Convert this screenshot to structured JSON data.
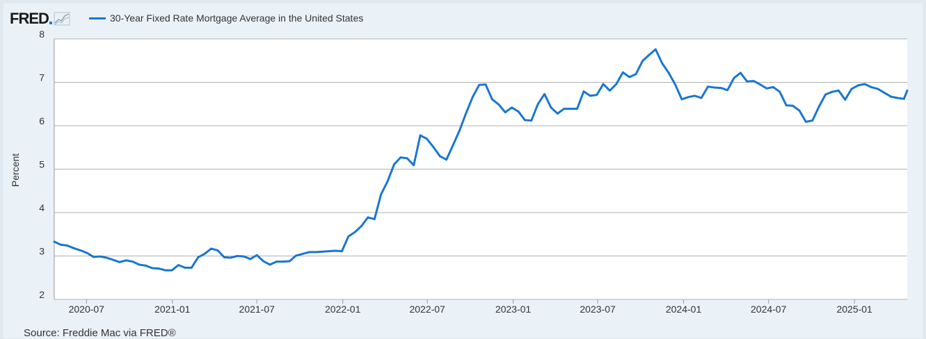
{
  "header": {
    "logo_text": "FRED",
    "legend_label": "30-Year Fixed Rate Mortgage Average in the United States"
  },
  "source": "Source: Freddie Mac via FRED®",
  "colors": {
    "series": "#1976d2",
    "grid": "#b0b0b0",
    "plot_bg": "#ffffff",
    "panel_bg": "#eaf1f7"
  },
  "chart_data": {
    "type": "line",
    "title": "30-Year Fixed Rate Mortgage Average in the United States",
    "xlabel": "",
    "ylabel": "Percent",
    "ylim": [
      2,
      8
    ],
    "xlim": [
      "2020-04-23",
      "2025-04-24"
    ],
    "yticks": [
      2,
      3,
      4,
      5,
      6,
      7,
      8
    ],
    "xticks": [
      "2020-07",
      "2021-01",
      "2021-07",
      "2022-01",
      "2022-07",
      "2023-01",
      "2023-07",
      "2024-01",
      "2024-07",
      "2025-01"
    ],
    "grid": "horizontal",
    "legend": "top-left",
    "series": [
      {
        "name": "30-Year Fixed Rate Mortgage Average in the United States",
        "x": [
          "2020-04-23",
          "2020-05-07",
          "2020-05-21",
          "2020-06-04",
          "2020-06-18",
          "2020-07-02",
          "2020-07-16",
          "2020-07-30",
          "2020-08-13",
          "2020-08-27",
          "2020-09-10",
          "2020-09-24",
          "2020-10-08",
          "2020-10-22",
          "2020-11-05",
          "2020-11-19",
          "2020-12-03",
          "2020-12-17",
          "2020-12-31",
          "2021-01-14",
          "2021-01-28",
          "2021-02-11",
          "2021-02-25",
          "2021-03-11",
          "2021-03-25",
          "2021-04-08",
          "2021-04-22",
          "2021-05-06",
          "2021-05-20",
          "2021-06-03",
          "2021-06-17",
          "2021-07-01",
          "2021-07-15",
          "2021-07-29",
          "2021-08-12",
          "2021-08-26",
          "2021-09-09",
          "2021-09-23",
          "2021-10-07",
          "2021-10-21",
          "2021-11-04",
          "2021-11-18",
          "2021-12-02",
          "2021-12-16",
          "2021-12-30",
          "2022-01-13",
          "2022-01-27",
          "2022-02-10",
          "2022-02-24",
          "2022-03-10",
          "2022-03-24",
          "2022-04-07",
          "2022-04-21",
          "2022-05-05",
          "2022-05-19",
          "2022-06-02",
          "2022-06-16",
          "2022-06-30",
          "2022-07-14",
          "2022-07-28",
          "2022-08-11",
          "2022-08-25",
          "2022-09-08",
          "2022-09-22",
          "2022-10-06",
          "2022-10-20",
          "2022-11-03",
          "2022-11-17",
          "2022-12-01",
          "2022-12-15",
          "2022-12-29",
          "2023-01-12",
          "2023-01-26",
          "2023-02-09",
          "2023-02-23",
          "2023-03-09",
          "2023-03-23",
          "2023-04-06",
          "2023-04-20",
          "2023-05-04",
          "2023-05-18",
          "2023-06-01",
          "2023-06-15",
          "2023-06-29",
          "2023-07-13",
          "2023-07-27",
          "2023-08-10",
          "2023-08-24",
          "2023-09-07",
          "2023-09-21",
          "2023-10-05",
          "2023-10-19",
          "2023-11-02",
          "2023-11-16",
          "2023-11-30",
          "2023-12-14",
          "2023-12-28",
          "2024-01-11",
          "2024-01-25",
          "2024-02-08",
          "2024-02-22",
          "2024-03-07",
          "2024-03-21",
          "2024-04-04",
          "2024-04-18",
          "2024-05-02",
          "2024-05-16",
          "2024-05-30",
          "2024-06-13",
          "2024-06-27",
          "2024-07-11",
          "2024-07-25",
          "2024-08-08",
          "2024-08-22",
          "2024-09-05",
          "2024-09-19",
          "2024-10-03",
          "2024-10-17",
          "2024-10-31",
          "2024-11-14",
          "2024-11-28",
          "2024-12-12",
          "2024-12-26",
          "2025-01-09",
          "2025-01-23",
          "2025-02-06",
          "2025-02-20",
          "2025-03-06",
          "2025-03-20",
          "2025-04-03",
          "2025-04-17",
          "2025-04-24"
        ],
        "values": [
          3.33,
          3.26,
          3.24,
          3.18,
          3.13,
          3.07,
          2.98,
          2.99,
          2.96,
          2.91,
          2.86,
          2.9,
          2.87,
          2.8,
          2.78,
          2.72,
          2.71,
          2.67,
          2.67,
          2.79,
          2.73,
          2.73,
          2.97,
          3.05,
          3.17,
          3.13,
          2.97,
          2.96,
          3.0,
          2.99,
          2.93,
          3.02,
          2.88,
          2.8,
          2.87,
          2.87,
          2.88,
          3.01,
          3.05,
          3.09,
          3.09,
          3.1,
          3.11,
          3.12,
          3.11,
          3.45,
          3.55,
          3.69,
          3.89,
          3.85,
          4.42,
          4.72,
          5.11,
          5.27,
          5.25,
          5.09,
          5.78,
          5.7,
          5.51,
          5.3,
          5.22,
          5.55,
          5.89,
          6.29,
          6.66,
          6.94,
          6.95,
          6.61,
          6.49,
          6.31,
          6.42,
          6.33,
          6.13,
          6.12,
          6.5,
          6.73,
          6.42,
          6.28,
          6.39,
          6.39,
          6.39,
          6.79,
          6.69,
          6.71,
          6.96,
          6.81,
          6.96,
          7.23,
          7.12,
          7.19,
          7.49,
          7.63,
          7.76,
          7.44,
          7.22,
          6.95,
          6.61,
          6.66,
          6.69,
          6.64,
          6.9,
          6.88,
          6.87,
          6.82,
          7.1,
          7.22,
          7.02,
          7.03,
          6.95,
          6.86,
          6.89,
          6.78,
          6.47,
          6.46,
          6.35,
          6.09,
          6.12,
          6.44,
          6.72,
          6.78,
          6.81,
          6.6,
          6.85,
          6.93,
          6.96,
          6.89,
          6.85,
          6.76,
          6.67,
          6.64,
          6.62,
          6.81
        ]
      }
    ]
  }
}
